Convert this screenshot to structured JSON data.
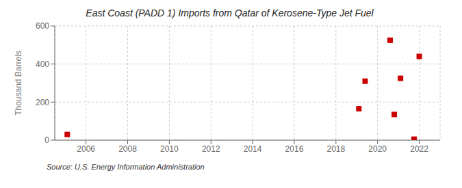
{
  "chart_data": {
    "type": "scatter",
    "title": "East Coast (PADD 1) Imports from Qatar of Kerosene-Type Jet Fuel",
    "ylabel": "Thousand Barrels",
    "annotation": "Source: U.S. Energy Information Administration",
    "x": [
      2005.1,
      2019.1,
      2019.4,
      2020.6,
      2020.8,
      2021.1,
      2021.75,
      2022.0
    ],
    "values": [
      30,
      165,
      310,
      525,
      135,
      325,
      5,
      440
    ],
    "color": "#cc0000",
    "marker": "square",
    "xlim": [
      2004.5,
      2023
    ],
    "xticks": [
      2006,
      2008,
      2010,
      2012,
      2014,
      2016,
      2018,
      2020,
      2022
    ],
    "ylim": [
      0,
      600
    ],
    "yticks": [
      0,
      200,
      400,
      600
    ],
    "grid": true
  }
}
